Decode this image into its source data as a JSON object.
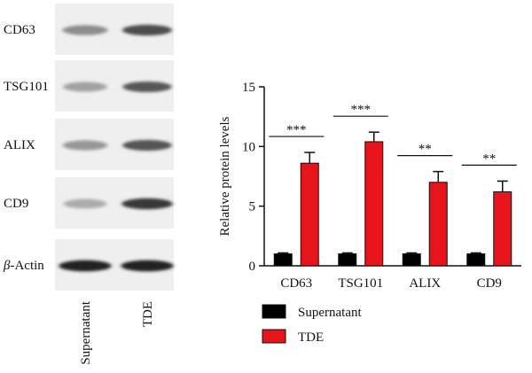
{
  "blot": {
    "rows": [
      {
        "label": "CD63",
        "italic_prefix": ""
      },
      {
        "label": "TSG101",
        "italic_prefix": ""
      },
      {
        "label": "ALIX",
        "italic_prefix": ""
      },
      {
        "label": "CD9",
        "italic_prefix": ""
      },
      {
        "label": "-Actin",
        "italic_prefix": "β"
      }
    ],
    "lanes": [
      "Supernatant",
      "TDE"
    ],
    "band_intensity": [
      [
        0.45,
        0.75
      ],
      [
        0.35,
        0.7
      ],
      [
        0.4,
        0.72
      ],
      [
        0.3,
        0.85
      ],
      [
        0.95,
        0.95
      ]
    ]
  },
  "chart_data": {
    "type": "bar",
    "title": "",
    "xlabel": "",
    "ylabel": "Relative protein levels",
    "ylim": [
      0,
      15
    ],
    "yticks": [
      0,
      5,
      10,
      15
    ],
    "categories": [
      "CD63",
      "TSG101",
      "ALIX",
      "CD9"
    ],
    "series": [
      {
        "name": "Supernatant",
        "color": "#000000",
        "values": [
          1.0,
          1.0,
          1.0,
          1.0
        ],
        "errors": [
          0.08,
          0.08,
          0.08,
          0.08
        ]
      },
      {
        "name": "TDE",
        "color": "#e8141c",
        "values": [
          8.6,
          10.4,
          7.0,
          6.2
        ],
        "errors": [
          0.9,
          0.8,
          0.9,
          0.9
        ]
      }
    ],
    "significance": [
      "***",
      "***",
      "**",
      "**"
    ],
    "legend_position": "bottom-left"
  }
}
